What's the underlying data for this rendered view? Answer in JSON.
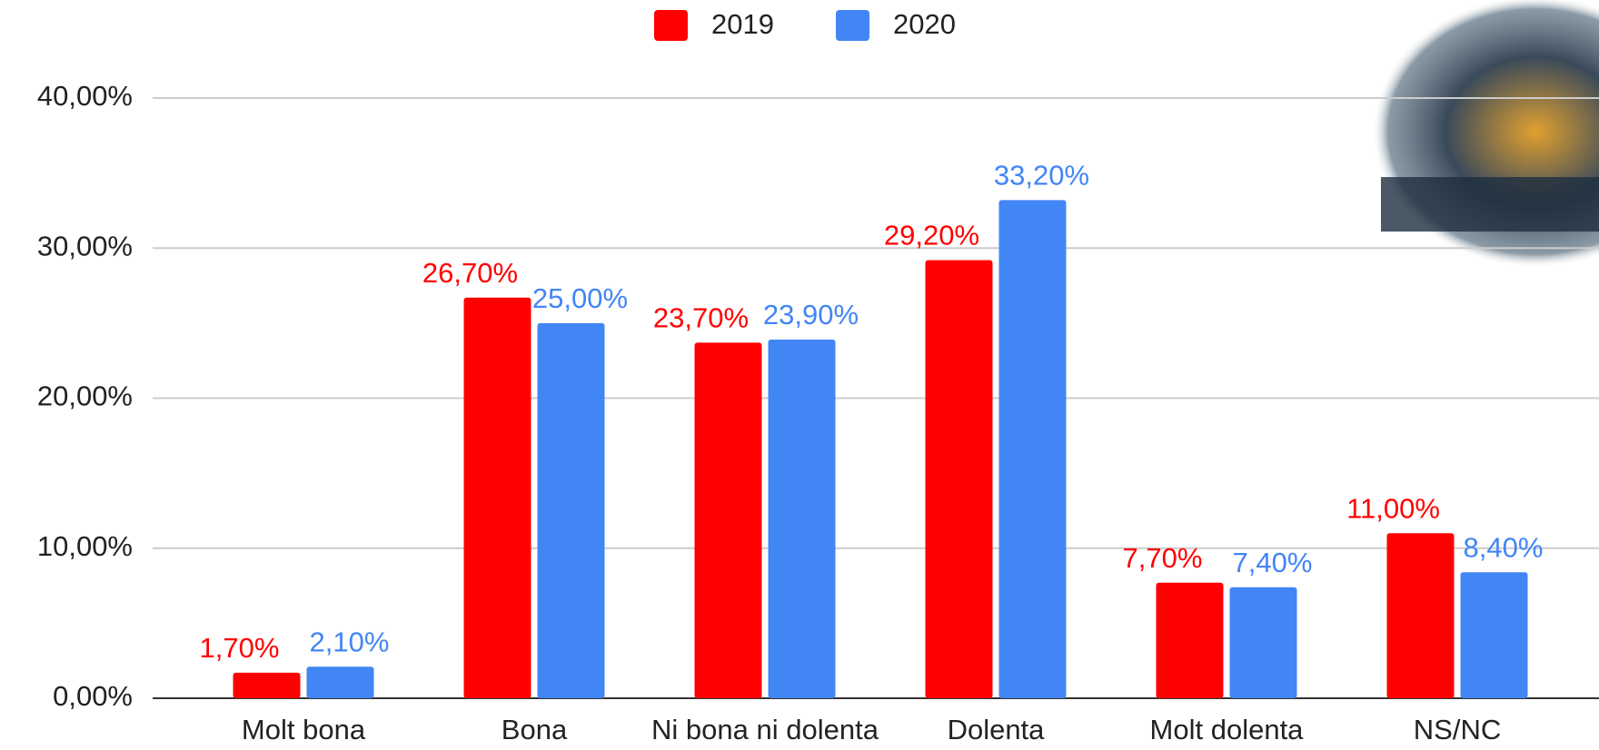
{
  "chart_data": {
    "type": "bar",
    "categories": [
      "Molt bona",
      "Bona",
      "Ni bona ni dolenta",
      "Dolenta",
      "Molt dolenta",
      "NS/NC"
    ],
    "series": [
      {
        "name": "2019",
        "color": "#ff0000",
        "values": [
          1.7,
          26.7,
          23.7,
          29.2,
          7.7,
          11.0
        ],
        "value_labels": [
          "1,70%",
          "26,70%",
          "23,70%",
          "29,20%",
          "7,70%",
          "11,00%"
        ]
      },
      {
        "name": "2020",
        "color": "#4285f4",
        "values": [
          2.1,
          25.0,
          23.9,
          33.2,
          7.4,
          8.4
        ],
        "value_labels": [
          "2,10%",
          "25,00%",
          "23,90%",
          "33,20%",
          "7,40%",
          "8,40%"
        ]
      }
    ],
    "ylim": [
      0,
      40
    ],
    "yticks": [
      {
        "value": 0,
        "label": "0,00%"
      },
      {
        "value": 10,
        "label": "10,00%"
      },
      {
        "value": 20,
        "label": "20,00%"
      },
      {
        "value": 30,
        "label": "30,00%"
      },
      {
        "value": 40,
        "label": "40,00%"
      }
    ],
    "grid": true,
    "legend": "top"
  }
}
